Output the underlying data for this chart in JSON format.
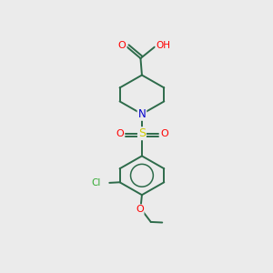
{
  "background_color": "#ebebeb",
  "bond_color": "#2d6b4a",
  "atom_colors": {
    "O": "#ff0000",
    "N": "#0000cc",
    "S": "#cccc00",
    "Cl": "#33aa33",
    "H": "#888888",
    "C": "#2d6b4a"
  },
  "figsize": [
    3.0,
    3.0
  ],
  "dpi": 100,
  "lw": 1.4
}
